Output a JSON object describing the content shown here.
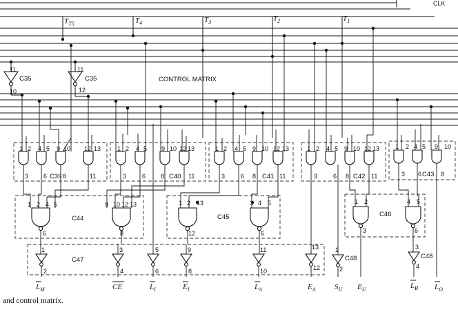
{
  "title": "CONTROL MATRIX",
  "top_right_fragment": "CLK",
  "caption": "and  control matrix.",
  "timing_lines": [
    "T5",
    "T4",
    "T3",
    "T2",
    "T1"
  ],
  "chips": {
    "C35a": "C35",
    "C35b": "C35",
    "C39": "C39",
    "C40": "C40",
    "C41": "C41",
    "C42": "C42",
    "C43": "C43",
    "C44": "C44",
    "C45": "C45",
    "C46": "C46",
    "C47": "C47",
    "C48a": "C48",
    "C48b": "C48"
  },
  "outputs": [
    {
      "name": "L_M",
      "base": "L",
      "sub": "M",
      "bar": true
    },
    {
      "name": "CE",
      "base": "CE",
      "sub": "",
      "bar": true
    },
    {
      "name": "L_I",
      "base": "L",
      "sub": "I",
      "bar": true
    },
    {
      "name": "E_I",
      "base": "E",
      "sub": "I",
      "bar": true
    },
    {
      "name": "L_A",
      "base": "L",
      "sub": "A",
      "bar": true
    },
    {
      "name": "E_A",
      "base": "E",
      "sub": "A",
      "bar": false
    },
    {
      "name": "S_U",
      "base": "S",
      "sub": "U",
      "bar": false
    },
    {
      "name": "E_U",
      "base": "E",
      "sub": "U",
      "bar": false
    },
    {
      "name": "L_B",
      "base": "L",
      "sub": "B",
      "bar": true
    },
    {
      "name": "L_O",
      "base": "L",
      "sub": "O",
      "bar": true
    }
  ]
}
